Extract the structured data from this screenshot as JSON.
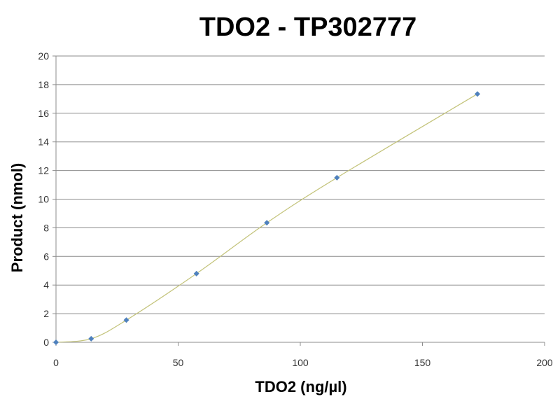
{
  "chart_data": {
    "type": "scatter",
    "title": "TDO2 - TP302777",
    "xlabel": "TDO2 (ng/µl)",
    "ylabel": "Product (nmol)",
    "xlim": [
      0,
      200
    ],
    "ylim": [
      0,
      20
    ],
    "xticks": [
      0,
      50,
      100,
      150,
      200
    ],
    "yticks": [
      0,
      2,
      4,
      6,
      8,
      10,
      12,
      14,
      16,
      18,
      20
    ],
    "grid": "horizontal",
    "legend": "none",
    "series": [
      {
        "x": [
          0,
          14.4,
          28.8,
          57.5,
          86.3,
          115,
          172.5
        ],
        "y": [
          0,
          0.25,
          1.55,
          4.8,
          8.35,
          11.5,
          17.35
        ],
        "marker": "diamond",
        "marker_color": "#4f81bd",
        "trendline_color": "#c3c37a"
      }
    ]
  }
}
